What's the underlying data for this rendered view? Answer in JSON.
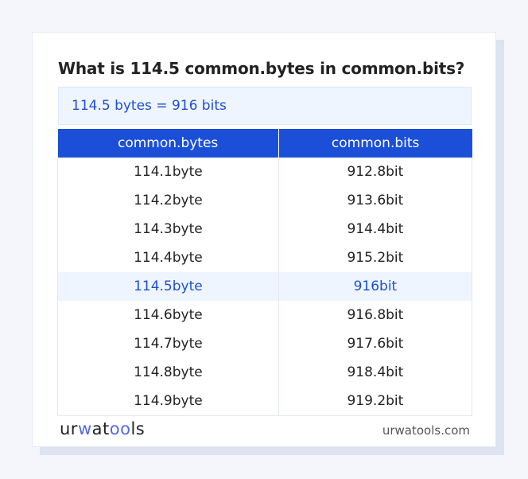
{
  "title": "What is 114.5 common.bytes in common.bits?",
  "summary": "114.5 bytes = 916 bits",
  "table": {
    "headers": [
      "common.bytes",
      "common.bits"
    ],
    "rows": [
      [
        "114.1byte",
        "912.8bit"
      ],
      [
        "114.2byte",
        "913.6bit"
      ],
      [
        "114.3byte",
        "914.4bit"
      ],
      [
        "114.4byte",
        "915.2bit"
      ],
      [
        "114.5byte",
        "916bit"
      ],
      [
        "114.6byte",
        "916.8bit"
      ],
      [
        "114.7byte",
        "917.6bit"
      ],
      [
        "114.8byte",
        "918.4bit"
      ],
      [
        "114.9byte",
        "919.2bit"
      ]
    ],
    "highlighted_row": 4
  },
  "footer": {
    "logo": "urwatools",
    "site": "urwatools.com"
  },
  "colors": {
    "accent": "#1c4fd8",
    "highlight_bg": "#eef5fe"
  }
}
